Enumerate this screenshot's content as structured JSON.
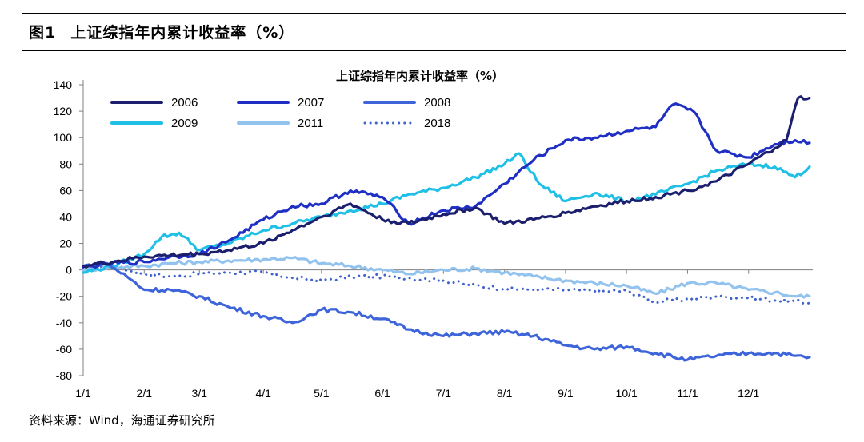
{
  "figure": {
    "number": "图1",
    "title": "上证综指年内累计收益率（%）"
  },
  "source": "资料来源：Wind，海通证券研究所",
  "colors": {
    "2006": "#1b1f6e",
    "2007": "#1f2fc4",
    "2008": "#3d64d9",
    "2009": "#1fbfe6",
    "2011": "#92c3ee",
    "2018": "#3f62cc"
  },
  "chart_data": {
    "type": "line",
    "title": "上证综指年内累计收益率（%）",
    "xlabel": "",
    "ylabel": "",
    "ylim": [
      -80,
      140
    ],
    "yticks": [
      -80,
      -60,
      -40,
      -20,
      0,
      20,
      40,
      60,
      80,
      100,
      120,
      140
    ],
    "xticks": [
      "1/1",
      "2/1",
      "3/1",
      "4/1",
      "5/1",
      "6/1",
      "7/1",
      "8/1",
      "9/1",
      "10/1",
      "11/1",
      "12/1"
    ],
    "x_unit": "trading day",
    "xlim": [
      0,
      250
    ],
    "xtick_positions": [
      0,
      21,
      40,
      62,
      82,
      103,
      124,
      145,
      166,
      187,
      208,
      229
    ],
    "grid": false,
    "legend": "top-left",
    "series": [
      {
        "name": "2006",
        "style": "solid",
        "x": [
          0,
          10,
          21,
          30,
          40,
          50,
          62,
          72,
          82,
          92,
          103,
          112,
          124,
          135,
          145,
          155,
          166,
          176,
          187,
          197,
          208,
          218,
          229,
          238,
          242,
          246,
          250
        ],
        "y": [
          3,
          6,
          10,
          11,
          12,
          15,
          20,
          30,
          40,
          50,
          38,
          35,
          42,
          47,
          35,
          38,
          43,
          48,
          52,
          55,
          60,
          67,
          80,
          92,
          98,
          130,
          130
        ]
      },
      {
        "name": "2007",
        "style": "solid",
        "x": [
          0,
          10,
          21,
          30,
          40,
          50,
          62,
          72,
          82,
          92,
          103,
          112,
          124,
          135,
          145,
          155,
          166,
          176,
          187,
          197,
          203,
          210,
          218,
          229,
          238,
          245,
          250
        ],
        "y": [
          2,
          5,
          6,
          10,
          12,
          22,
          38,
          48,
          50,
          60,
          55,
          35,
          45,
          48,
          65,
          83,
          98,
          100,
          105,
          108,
          125,
          120,
          90,
          85,
          95,
          98,
          96
        ]
      },
      {
        "name": "2008",
        "style": "solid",
        "x": [
          0,
          8,
          15,
          21,
          30,
          40,
          50,
          62,
          72,
          82,
          92,
          103,
          112,
          124,
          135,
          145,
          155,
          166,
          176,
          187,
          197,
          208,
          218,
          229,
          238,
          245,
          250
        ],
        "y": [
          3,
          5,
          -5,
          -15,
          -15,
          -20,
          -28,
          -35,
          -40,
          -30,
          -32,
          -37,
          -45,
          -50,
          -48,
          -47,
          -50,
          -57,
          -60,
          -58,
          -63,
          -68,
          -65,
          -63,
          -63,
          -65,
          -66
        ]
      },
      {
        "name": "2009",
        "style": "solid",
        "x": [
          0,
          10,
          21,
          27,
          33,
          40,
          50,
          62,
          72,
          82,
          92,
          103,
          112,
          124,
          135,
          145,
          150,
          157,
          166,
          176,
          187,
          197,
          208,
          218,
          229,
          238,
          245,
          250
        ],
        "y": [
          -2,
          3,
          12,
          25,
          28,
          15,
          20,
          30,
          35,
          40,
          45,
          50,
          57,
          62,
          70,
          80,
          88,
          65,
          52,
          58,
          52,
          57,
          65,
          75,
          80,
          78,
          70,
          78
        ]
      },
      {
        "name": "2011",
        "style": "solid",
        "x": [
          0,
          10,
          21,
          30,
          40,
          50,
          62,
          72,
          82,
          92,
          103,
          112,
          124,
          135,
          145,
          155,
          166,
          176,
          187,
          197,
          208,
          218,
          229,
          238,
          245,
          250
        ],
        "y": [
          0,
          2,
          3,
          5,
          6,
          7,
          8,
          9,
          5,
          3,
          0,
          -3,
          0,
          1,
          -2,
          -5,
          -8,
          -10,
          -12,
          -18,
          -10,
          -10,
          -15,
          -17,
          -20,
          -20
        ]
      },
      {
        "name": "2018",
        "style": "dotted",
        "x": [
          0,
          10,
          21,
          30,
          40,
          50,
          62,
          72,
          82,
          92,
          103,
          112,
          124,
          135,
          145,
          155,
          166,
          176,
          187,
          197,
          208,
          218,
          229,
          238,
          245,
          250
        ],
        "y": [
          2,
          3,
          -3,
          -5,
          -3,
          -2,
          -2,
          -6,
          -8,
          -5,
          -5,
          -6,
          -8,
          -12,
          -14,
          -15,
          -15,
          -16,
          -16,
          -24,
          -22,
          -20,
          -21,
          -23,
          -24,
          -25
        ]
      }
    ]
  }
}
